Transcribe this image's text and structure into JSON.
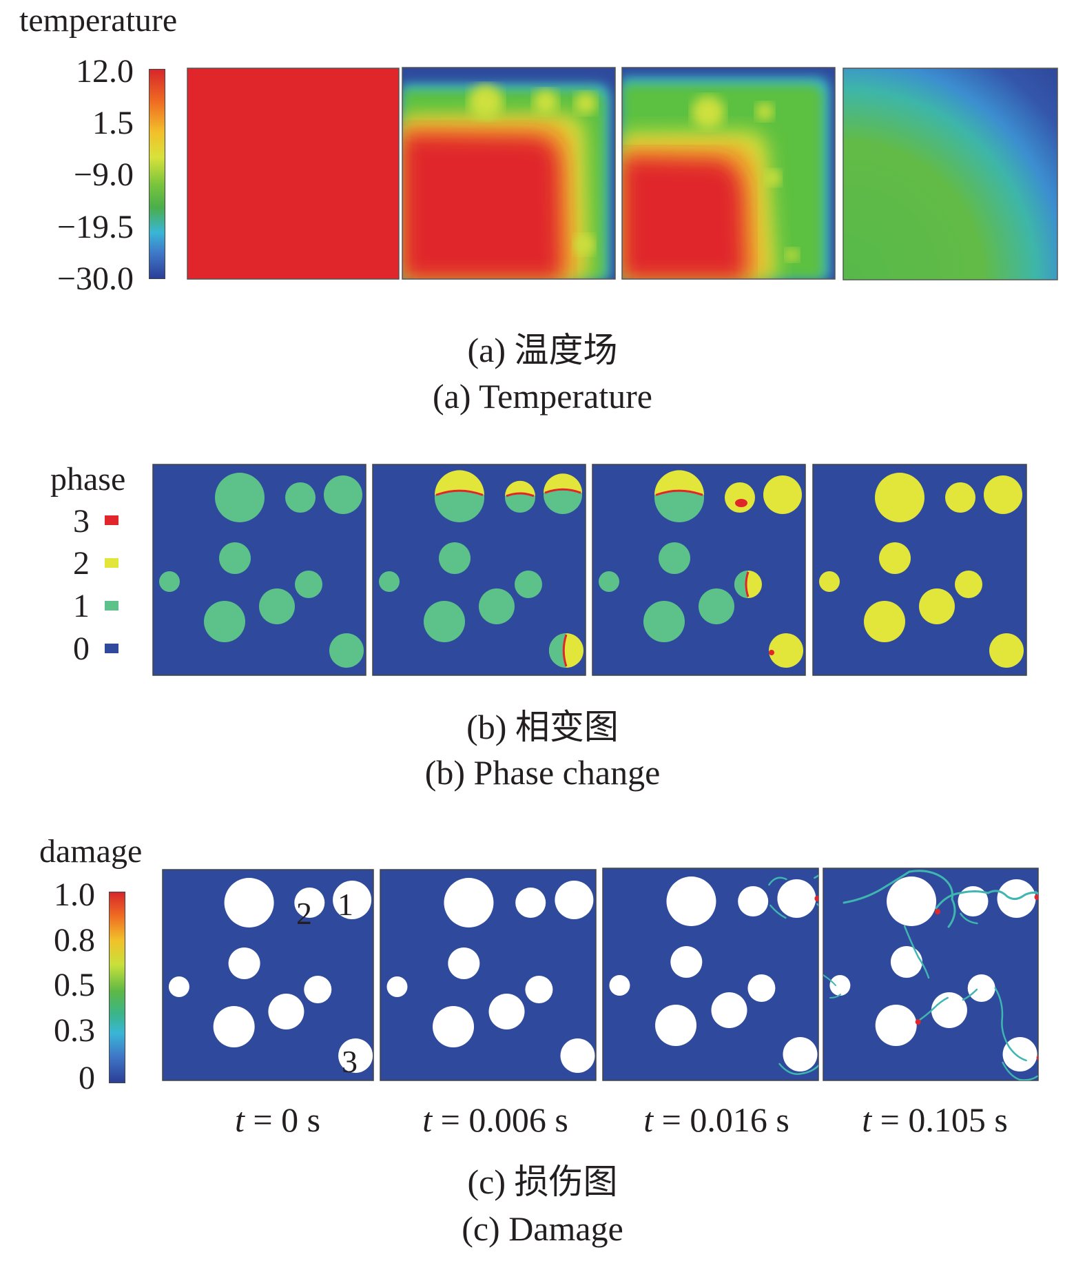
{
  "panel_a": {
    "legend_title": "temperature",
    "ticks": [
      "12.0",
      "1.5",
      "−9.0",
      "−19.5",
      "−30.0"
    ],
    "caption_cn": "(a) 温度场",
    "caption_en": "(a) Temperature"
  },
  "panel_b": {
    "legend_title": "phase",
    "legend": [
      {
        "label": "3",
        "color": "#e0262a"
      },
      {
        "label": "2",
        "color": "#e3e63a"
      },
      {
        "label": "1",
        "color": "#5cc28a"
      },
      {
        "label": "0",
        "color": "#2f4a9c"
      }
    ],
    "caption_cn": "(b) 相变图",
    "caption_en": "(b) Phase change"
  },
  "panel_c": {
    "legend_title": "damage",
    "ticks": [
      "1.0",
      "0.8",
      "0.5",
      "0.3",
      "0"
    ],
    "particle_labels": [
      "1",
      "2",
      "3"
    ],
    "caption_cn": "(c) 损伤图",
    "caption_en": "(c) Damage"
  },
  "times": [
    {
      "var": "t",
      "rest": " = 0 s"
    },
    {
      "var": "t",
      "rest": " = 0.006 s"
    },
    {
      "var": "t",
      "rest": " = 0.016 s"
    },
    {
      "var": "t",
      "rest": " = 0.105 s"
    }
  ],
  "colors": {
    "matrix_blue": "#2f4a9c",
    "hot_red": "#e0262a",
    "aggregate_green": "#5cc28a",
    "frozen_yellow": "#e3e63a"
  }
}
